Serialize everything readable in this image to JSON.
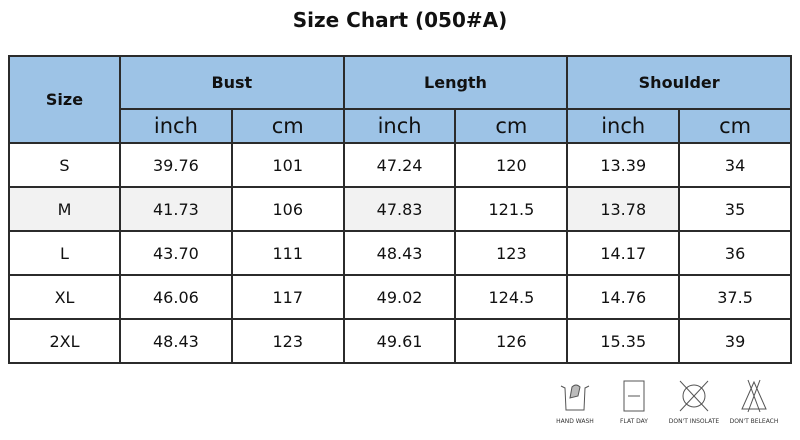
{
  "title": "Size Chart  (050#A)",
  "header": {
    "size": "Size",
    "groups": [
      "Bust",
      "Length",
      "Shoulder"
    ],
    "units": [
      "inch",
      "cm",
      "inch",
      "cm",
      "inch",
      "cm"
    ]
  },
  "rows": [
    [
      "S",
      "39.76",
      "101",
      "47.24",
      "120",
      "13.39",
      "34"
    ],
    [
      "M",
      "41.73",
      "106",
      "47.83",
      "121.5",
      "13.78",
      "35"
    ],
    [
      "L",
      "43.70",
      "111",
      "48.43",
      "123",
      "14.17",
      "36"
    ],
    [
      "XL",
      "46.06",
      "117",
      "49.02",
      "124.5",
      "14.76",
      "37.5"
    ],
    [
      "2XL",
      "48.43",
      "123",
      "49.61",
      "126",
      "15.35",
      "39"
    ]
  ],
  "care": [
    {
      "icon": "hand-wash-icon",
      "label": "HAND WASH"
    },
    {
      "icon": "flat-dry-icon",
      "label": "FLAT DAY"
    },
    {
      "icon": "do-not-tumble-icon",
      "label": "DON'T INSOLATE"
    },
    {
      "icon": "do-not-bleach-icon",
      "label": "DON'T BELEACH"
    }
  ],
  "colors": {
    "header": "#9dc3e6",
    "border": "#2b2b2b",
    "shade": "#f2f2f2"
  }
}
